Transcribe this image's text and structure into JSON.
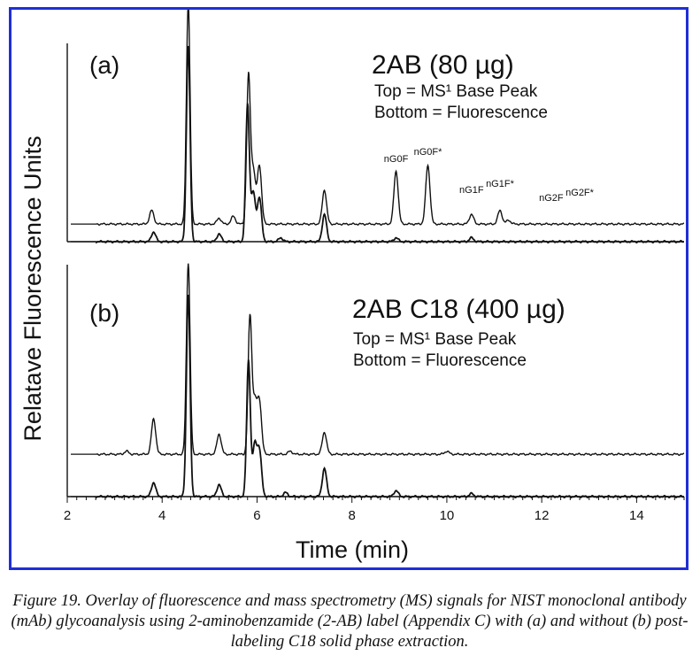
{
  "chart_data": {
    "type": "line",
    "xlabel": "Time (min)",
    "ylabel": "Relatave Fluorescence Units",
    "xlim": [
      2,
      15
    ],
    "xticks": [
      2,
      4,
      6,
      8,
      10,
      12,
      14
    ],
    "grid": false,
    "panels": [
      {
        "panel_label": "(a)",
        "title": "2AB (80 µg)",
        "subtitle_line1": "Top = MS¹ Base Peak",
        "subtitle_line2": "Bottom = Fluorescence",
        "peak_labels": [
          {
            "text": "nG0F",
            "x": 8.93
          },
          {
            "text": "nG0F*",
            "x": 9.6
          },
          {
            "text": "nG1F",
            "x": 10.52
          },
          {
            "text": "nG1F*",
            "x": 11.12
          },
          {
            "text": "nG2F",
            "x": 12.2
          },
          {
            "text": "nG2F*",
            "x": 12.8
          }
        ],
        "series": [
          {
            "role": "top",
            "baseline": 0.18,
            "peaks": [
              [
                3.78,
                0.14
              ],
              [
                4.55,
                2.26
              ],
              [
                5.2,
                0.06
              ],
              [
                5.5,
                0.08
              ],
              [
                5.82,
                1.5
              ],
              [
                5.92,
                0.55
              ],
              [
                6.05,
                0.6
              ],
              [
                7.42,
                0.35
              ],
              [
                8.93,
                0.54
              ],
              [
                9.6,
                0.6
              ],
              [
                10.52,
                0.1
              ],
              [
                11.12,
                0.14
              ],
              [
                11.3,
                0.04
              ]
            ]
          },
          {
            "role": "bottom",
            "baseline": 0.0,
            "peaks": [
              [
                3.82,
                0.1
              ],
              [
                4.55,
                2.0
              ],
              [
                5.2,
                0.08
              ],
              [
                5.8,
                1.4
              ],
              [
                5.92,
                0.5
              ],
              [
                6.05,
                0.45
              ],
              [
                6.5,
                0.04
              ],
              [
                7.42,
                0.28
              ],
              [
                8.93,
                0.04
              ],
              [
                10.52,
                0.04
              ]
            ]
          }
        ],
        "ylim": [
          0,
          2.3
        ]
      },
      {
        "panel_label": "(b)",
        "title": "2AB C18 (400 µg)",
        "subtitle_line1": "Top = MS¹ Base Peak",
        "subtitle_line2": "Bottom = Fluorescence",
        "peak_labels": [],
        "series": [
          {
            "role": "top",
            "baseline": 0.42,
            "peaks": [
              [
                3.25,
                0.03
              ],
              [
                3.82,
                0.35
              ],
              [
                4.55,
                1.9
              ],
              [
                5.2,
                0.2
              ],
              [
                5.85,
                1.35
              ],
              [
                5.95,
                0.5
              ],
              [
                6.05,
                0.52
              ],
              [
                6.7,
                0.03
              ],
              [
                7.42,
                0.22
              ],
              [
                10.0,
                0.03
              ]
            ]
          },
          {
            "role": "bottom",
            "baseline": 0.0,
            "peaks": [
              [
                3.82,
                0.14
              ],
              [
                4.55,
                2.0
              ],
              [
                5.2,
                0.12
              ],
              [
                5.82,
                1.35
              ],
              [
                5.95,
                0.5
              ],
              [
                6.05,
                0.45
              ],
              [
                6.6,
                0.04
              ],
              [
                7.42,
                0.28
              ],
              [
                8.93,
                0.06
              ],
              [
                10.52,
                0.03
              ]
            ]
          }
        ],
        "ylim": [
          0,
          2.3
        ]
      }
    ]
  },
  "caption": "Figure 19. Overlay of fluorescence and mass spectrometry (MS) signals for NIST monoclonal antibody (mAb) glycoanalysis using 2-aminobenzamide (2-AB) label (Appendix C) with (a) and without (b) post-labeling C18 solid phase extraction."
}
